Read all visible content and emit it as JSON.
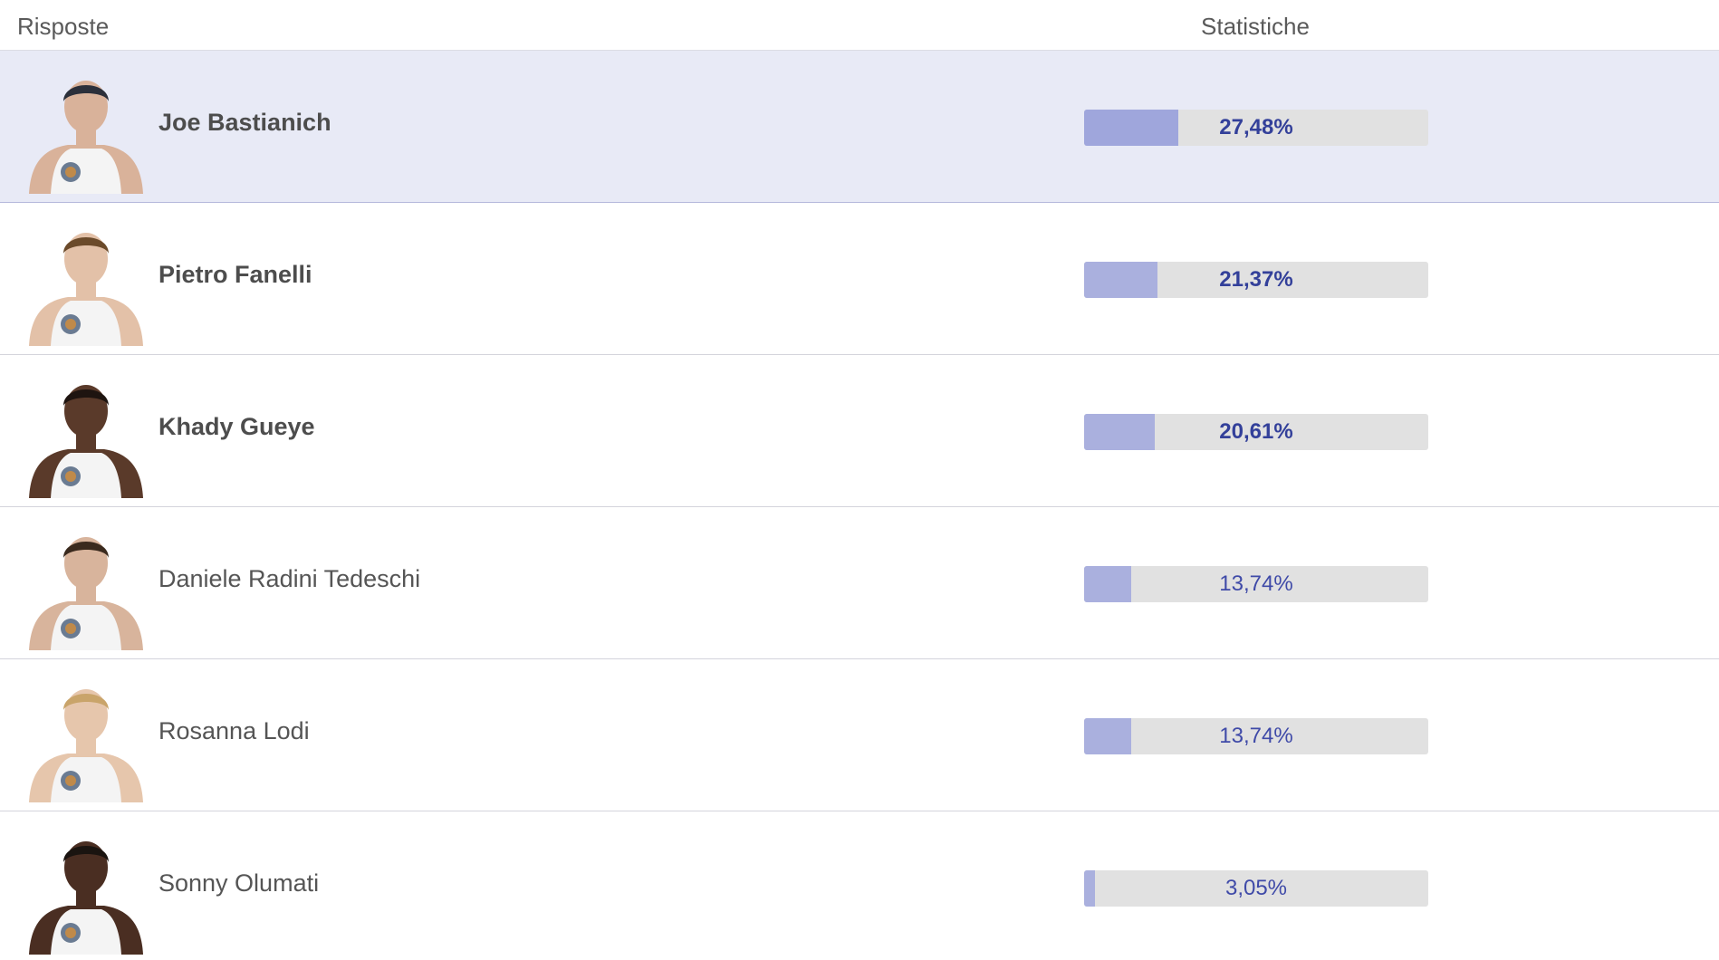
{
  "header": {
    "answers_label": "Risposte",
    "stats_label": "Statistiche"
  },
  "colors": {
    "selected_row_bg": "#e8eaf6",
    "bar_track": "#e1e1e1",
    "bar_fill": "#aab0de",
    "percent_text": "#3f4aa8"
  },
  "rows": [
    {
      "name": "Joe Bastianich",
      "percent_label": "27,48%",
      "value": 27.48,
      "bold": true,
      "selected": true,
      "avatar": "contestant-photo-icon"
    },
    {
      "name": "Pietro Fanelli",
      "percent_label": "21,37%",
      "value": 21.37,
      "bold": true,
      "selected": false,
      "avatar": "contestant-photo-icon"
    },
    {
      "name": "Khady Gueye",
      "percent_label": "20,61%",
      "value": 20.61,
      "bold": true,
      "selected": false,
      "avatar": "contestant-photo-icon"
    },
    {
      "name": "Daniele Radini Tedeschi",
      "percent_label": "13,74%",
      "value": 13.74,
      "bold": false,
      "selected": false,
      "avatar": "contestant-photo-icon"
    },
    {
      "name": "Rosanna Lodi",
      "percent_label": "13,74%",
      "value": 13.74,
      "bold": false,
      "selected": false,
      "avatar": "contestant-photo-icon"
    },
    {
      "name": "Sonny Olumati",
      "percent_label": "3,05%",
      "value": 3.05,
      "bold": false,
      "selected": false,
      "avatar": "contestant-photo-icon"
    }
  ]
}
